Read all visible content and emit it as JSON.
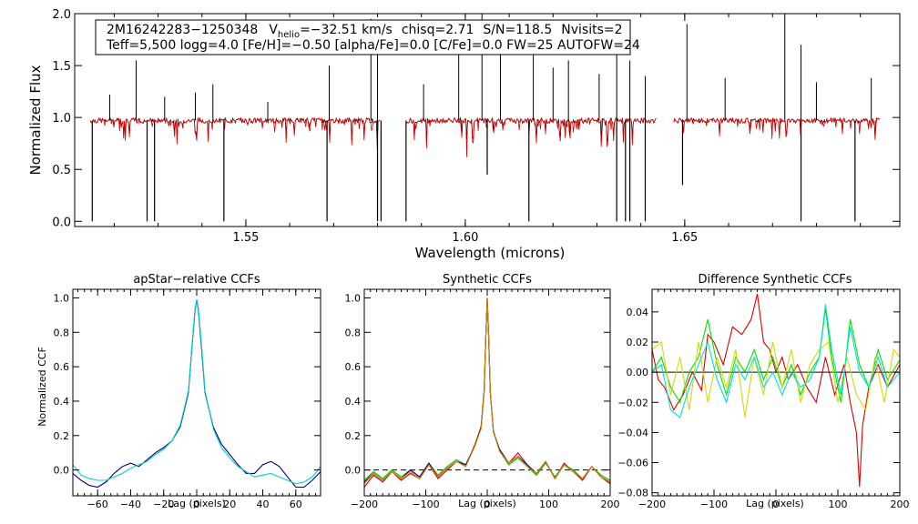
{
  "chart_data": [
    {
      "type": "line",
      "name": "spectrum",
      "info_line1": {
        "star_id": "2M16242283−1250348",
        "v_label": "V",
        "v_sub": "helio",
        "v_value": "=−32.51 km/s",
        "chisq": "chisq=2.71",
        "sn": "S/N=118.5",
        "nvisits": "Nvisits=2"
      },
      "info_line2": "Teff=5,500 logg=4.0 [Fe/H]=−0.50 [alpha/Fe]=0.0 [C/Fe]=0.0 FW=25 AUTOFW=24",
      "xlabel": "Wavelength (microns)",
      "ylabel": "Normalized Flux",
      "xlim": [
        1.511,
        1.699
      ],
      "ylim": [
        -0.05,
        2.0
      ],
      "xticks": [
        "1.55",
        "1.60",
        "1.65"
      ],
      "yticks": [
        "0.0",
        "0.5",
        "1.0",
        "1.5",
        "2.0"
      ],
      "chips": [
        [
          1.5145,
          1.5805
        ],
        [
          1.5865,
          1.6435
        ],
        [
          1.6475,
          1.6945
        ]
      ],
      "continuum": 0.97,
      "emission_spikes": [
        [
          1.519,
          1.22
        ],
        [
          1.525,
          1.55
        ],
        [
          1.5315,
          1.2
        ],
        [
          1.5385,
          1.24
        ],
        [
          1.5425,
          1.32
        ],
        [
          1.555,
          1.15
        ],
        [
          1.569,
          1.5
        ],
        [
          1.5785,
          1.95
        ],
        [
          1.58,
          1.85
        ],
        [
          1.5905,
          1.32
        ],
        [
          1.5985,
          1.62
        ],
        [
          1.6038,
          2.0
        ],
        [
          1.608,
          1.72
        ],
        [
          1.6155,
          1.6
        ],
        [
          1.62,
          1.48
        ],
        [
          1.6235,
          1.55
        ],
        [
          1.6305,
          1.42
        ],
        [
          1.6345,
          1.9
        ],
        [
          1.6375,
          1.55
        ],
        [
          1.641,
          1.4
        ],
        [
          1.6505,
          1.9
        ],
        [
          1.6592,
          1.38
        ],
        [
          1.6728,
          2.0
        ],
        [
          1.6765,
          1.7
        ],
        [
          1.68,
          1.34
        ],
        [
          1.6925,
          1.38
        ]
      ],
      "absorption_spikes": [
        [
          1.515,
          0.0
        ],
        [
          1.5275,
          0.0
        ],
        [
          1.5292,
          0.0
        ],
        [
          1.545,
          0.0
        ],
        [
          1.5685,
          0.0
        ],
        [
          1.58,
          0.0
        ],
        [
          1.5808,
          0.0
        ],
        [
          1.5865,
          0.0
        ],
        [
          1.605,
          0.45
        ],
        [
          1.6145,
          0.0
        ],
        [
          1.6345,
          0.0
        ],
        [
          1.6365,
          0.0
        ],
        [
          1.6375,
          0.0
        ],
        [
          1.641,
          0.0
        ],
        [
          1.6495,
          0.35
        ],
        [
          1.6765,
          0.0
        ],
        [
          1.6888,
          0.0
        ]
      ],
      "series": [
        {
          "name": "observed",
          "color": "#000000"
        },
        {
          "name": "model",
          "color": "#dd0000"
        }
      ]
    },
    {
      "type": "line",
      "name": "apstar-ccf",
      "title": "apStar−relative CCFs",
      "xlabel": "Lag (pixels)",
      "ylabel": "Normalized CCF",
      "xlim": [
        -75,
        75
      ],
      "ylim": [
        -0.15,
        1.05
      ],
      "xticks": [
        -60,
        -40,
        -20,
        0,
        20,
        40,
        60
      ],
      "yticks": [
        0.0,
        0.2,
        0.4,
        0.6,
        0.8,
        1.0
      ],
      "ytick_labels": [
        "0.0",
        "0.2",
        "0.4",
        "0.6",
        "0.8",
        "1.0"
      ],
      "baseline": null,
      "series": [
        {
          "name": "ccf-1",
          "color": "#000080",
          "x": [
            -75,
            -70,
            -65,
            -60,
            -55,
            -50,
            -45,
            -40,
            -35,
            -30,
            -25,
            -20,
            -15,
            -10,
            -5,
            -3,
            -1,
            0,
            1,
            3,
            5,
            10,
            15,
            20,
            25,
            30,
            35,
            40,
            45,
            50,
            55,
            60,
            65,
            70,
            75
          ],
          "y": [
            -0.02,
            -0.06,
            -0.09,
            -0.1,
            -0.07,
            -0.02,
            0.02,
            0.04,
            0.02,
            0.06,
            0.1,
            0.13,
            0.17,
            0.25,
            0.45,
            0.7,
            0.93,
            0.99,
            0.93,
            0.7,
            0.45,
            0.25,
            0.15,
            0.09,
            0.03,
            -0.02,
            -0.02,
            0.03,
            0.05,
            0.02,
            -0.04,
            -0.1,
            -0.1,
            -0.06,
            -0.01
          ]
        },
        {
          "name": "ccf-2",
          "color": "#00d0d0",
          "x": [
            -75,
            -70,
            -65,
            -60,
            -55,
            -50,
            -45,
            -40,
            -35,
            -30,
            -25,
            -20,
            -15,
            -10,
            -5,
            -3,
            -1,
            0,
            1,
            3,
            5,
            10,
            15,
            20,
            25,
            30,
            35,
            40,
            45,
            50,
            55,
            60,
            65,
            70,
            75
          ],
          "y": [
            0.03,
            -0.03,
            -0.05,
            -0.06,
            -0.06,
            -0.04,
            -0.02,
            0.01,
            0.03,
            0.05,
            0.09,
            0.12,
            0.17,
            0.26,
            0.46,
            0.71,
            0.94,
            0.99,
            0.94,
            0.72,
            0.46,
            0.24,
            0.13,
            0.07,
            0.02,
            -0.01,
            -0.04,
            -0.03,
            -0.02,
            -0.04,
            -0.06,
            -0.08,
            -0.07,
            -0.04,
            0.02
          ]
        }
      ]
    },
    {
      "type": "line",
      "name": "synthetic-ccf",
      "title": "Synthetic CCFs",
      "xlabel": "Lag (pixels)",
      "ylabel": "",
      "xlim": [
        -200,
        200
      ],
      "ylim": [
        -0.15,
        1.05
      ],
      "xticks": [
        -200,
        -100,
        0,
        100,
        200
      ],
      "yticks": [
        0.0,
        0.2,
        0.4,
        0.6,
        0.8,
        1.0
      ],
      "ytick_labels": [
        "0.0",
        "0.2",
        "0.4",
        "0.6",
        "0.8",
        "1.0"
      ],
      "baseline": 0.0,
      "series": [
        {
          "name": "ccf-red",
          "color": "#dd0000",
          "x": [
            -200,
            -185,
            -170,
            -155,
            -140,
            -125,
            -110,
            -95,
            -80,
            -65,
            -50,
            -35,
            -20,
            -10,
            -5,
            -2,
            0,
            2,
            5,
            10,
            20,
            35,
            50,
            65,
            80,
            95,
            110,
            125,
            140,
            155,
            170,
            185,
            200
          ],
          "y": [
            -0.1,
            -0.03,
            -0.07,
            -0.01,
            -0.06,
            -0.02,
            -0.05,
            0.03,
            -0.05,
            0.0,
            0.05,
            0.02,
            0.15,
            0.25,
            0.45,
            0.8,
            1.0,
            0.8,
            0.45,
            0.22,
            0.12,
            0.04,
            0.1,
            0.03,
            -0.02,
            0.05,
            -0.05,
            0.04,
            -0.01,
            -0.06,
            0.02,
            -0.04,
            -0.08
          ]
        },
        {
          "name": "ccf-green",
          "color": "#00c000",
          "x": [
            -200,
            -185,
            -170,
            -155,
            -140,
            -125,
            -110,
            -95,
            -80,
            -65,
            -50,
            -35,
            -20,
            -10,
            -5,
            -2,
            0,
            2,
            5,
            10,
            20,
            35,
            50,
            65,
            80,
            95,
            110,
            125,
            140,
            155,
            170,
            185,
            200
          ],
          "y": [
            -0.06,
            -0.01,
            -0.05,
            0.0,
            -0.04,
            0.0,
            -0.04,
            0.04,
            -0.03,
            0.02,
            0.06,
            0.03,
            0.14,
            0.25,
            0.46,
            0.8,
            0.99,
            0.8,
            0.45,
            0.23,
            0.11,
            0.03,
            0.07,
            0.02,
            -0.03,
            0.04,
            -0.04,
            0.03,
            0.0,
            -0.05,
            0.02,
            -0.03,
            -0.06
          ]
        },
        {
          "name": "ccf-navy",
          "color": "#000080",
          "x": [
            -200,
            -185,
            -170,
            -155,
            -140,
            -125,
            -110,
            -95,
            -80,
            -65,
            -50,
            -35,
            -20,
            -10,
            -5,
            -2,
            0,
            2,
            5,
            10,
            20,
            35,
            50,
            65,
            80,
            95,
            110,
            125,
            140,
            155,
            170,
            185,
            200
          ],
          "y": [
            -0.07,
            -0.02,
            -0.06,
            -0.01,
            -0.05,
            0.0,
            -0.04,
            0.04,
            -0.04,
            0.01,
            0.05,
            0.03,
            0.14,
            0.25,
            0.46,
            0.8,
            0.99,
            0.8,
            0.45,
            0.22,
            0.12,
            0.04,
            0.08,
            0.03,
            -0.02,
            0.05,
            -0.05,
            0.03,
            -0.01,
            -0.05,
            0.02,
            -0.04,
            -0.07
          ]
        },
        {
          "name": "ccf-orange",
          "color": "#e08000",
          "x": [
            -200,
            -185,
            -170,
            -155,
            -140,
            -125,
            -110,
            -95,
            -80,
            -65,
            -50,
            -35,
            -20,
            -10,
            -5,
            -2,
            0,
            2,
            5,
            10,
            20,
            35,
            50,
            65,
            80,
            95,
            110,
            125,
            140,
            155,
            170,
            185,
            200
          ],
          "y": [
            -0.08,
            -0.02,
            -0.06,
            -0.01,
            -0.05,
            -0.01,
            -0.05,
            0.03,
            -0.04,
            0.01,
            0.05,
            0.02,
            0.14,
            0.24,
            0.45,
            0.8,
            0.99,
            0.8,
            0.45,
            0.22,
            0.11,
            0.04,
            0.08,
            0.02,
            -0.02,
            0.05,
            -0.05,
            0.03,
            -0.01,
            -0.05,
            0.02,
            -0.04,
            -0.07
          ]
        }
      ]
    },
    {
      "type": "line",
      "name": "difference-ccf",
      "title": "Difference Synthetic CCFs",
      "xlabel": "Lag (pixels)",
      "ylabel": "",
      "xlim": [
        -200,
        200
      ],
      "ylim": [
        -0.082,
        0.055
      ],
      "xticks": [
        -200,
        -100,
        0,
        100,
        200
      ],
      "yticks": [
        -0.08,
        -0.06,
        -0.04,
        -0.02,
        0.0,
        0.02,
        0.04
      ],
      "ytick_labels": [
        "−0.08",
        "−0.06",
        "−0.04",
        "−0.02",
        "0.00",
        "0.02",
        "0.04"
      ],
      "baseline": 0.0,
      "series": [
        {
          "name": "diff-red",
          "color": "#dd0000",
          "x": [
            -200,
            -190,
            -180,
            -165,
            -150,
            -135,
            -120,
            -110,
            -100,
            -85,
            -70,
            -55,
            -40,
            -30,
            -20,
            -10,
            0,
            10,
            20,
            35,
            50,
            65,
            80,
            95,
            110,
            120,
            130,
            135,
            140,
            150,
            165,
            180,
            200
          ],
          "y": [
            0.015,
            -0.005,
            -0.01,
            -0.025,
            -0.015,
            0.0,
            -0.012,
            0.025,
            0.02,
            0.005,
            0.03,
            0.025,
            0.035,
            0.052,
            0.02,
            0.015,
            0.0,
            0.01,
            -0.005,
            0.005,
            -0.01,
            -0.02,
            0.01,
            -0.015,
            0.005,
            -0.02,
            -0.04,
            -0.076,
            -0.035,
            -0.01,
            0.005,
            -0.01,
            0.005
          ]
        },
        {
          "name": "diff-green",
          "color": "#00e000",
          "x": [
            -200,
            -185,
            -170,
            -155,
            -140,
            -125,
            -110,
            -95,
            -80,
            -65,
            -50,
            -35,
            -20,
            -5,
            10,
            25,
            40,
            55,
            70,
            80,
            90,
            105,
            120,
            135,
            150,
            165,
            180,
            200
          ],
          "y": [
            0.0,
            0.01,
            -0.01,
            -0.02,
            0.0,
            0.01,
            0.035,
            0.005,
            -0.015,
            0.01,
            0.0,
            0.015,
            -0.005,
            0.01,
            -0.01,
            0.005,
            -0.015,
            0.0,
            0.01,
            0.042,
            0.01,
            -0.02,
            0.035,
            0.005,
            -0.01,
            0.015,
            -0.005,
            0.008
          ]
        },
        {
          "name": "diff-yellow",
          "color": "#d8d800",
          "x": [
            -200,
            -185,
            -170,
            -155,
            -140,
            -125,
            -110,
            -95,
            -80,
            -65,
            -50,
            -35,
            -20,
            -5,
            10,
            25,
            40,
            55,
            70,
            85,
            100,
            115,
            130,
            145,
            160,
            175,
            190,
            200
          ],
          "y": [
            0.015,
            0.02,
            -0.015,
            0.01,
            -0.025,
            0.02,
            -0.02,
            0.01,
            -0.01,
            0.015,
            -0.03,
            0.01,
            -0.015,
            0.02,
            -0.01,
            0.015,
            -0.02,
            0.005,
            0.015,
            0.02,
            -0.02,
            0.01,
            -0.015,
            -0.025,
            0.01,
            -0.02,
            0.015,
            0.01
          ]
        },
        {
          "name": "diff-cyan",
          "color": "#00e0e0",
          "x": [
            -200,
            -185,
            -170,
            -155,
            -140,
            -125,
            -110,
            -95,
            -80,
            -65,
            -50,
            -35,
            -20,
            -5,
            10,
            25,
            40,
            55,
            70,
            80,
            90,
            105,
            120,
            135,
            150,
            165,
            180,
            200
          ],
          "y": [
            0.0,
            0.005,
            -0.025,
            -0.03,
            -0.01,
            0.005,
            0.02,
            -0.005,
            -0.02,
            0.005,
            -0.005,
            0.01,
            -0.01,
            0.0,
            -0.015,
            0.0,
            -0.01,
            -0.005,
            0.01,
            0.045,
            0.015,
            -0.015,
            0.03,
            0.0,
            -0.01,
            0.01,
            -0.01,
            0.0
          ]
        }
      ]
    }
  ]
}
